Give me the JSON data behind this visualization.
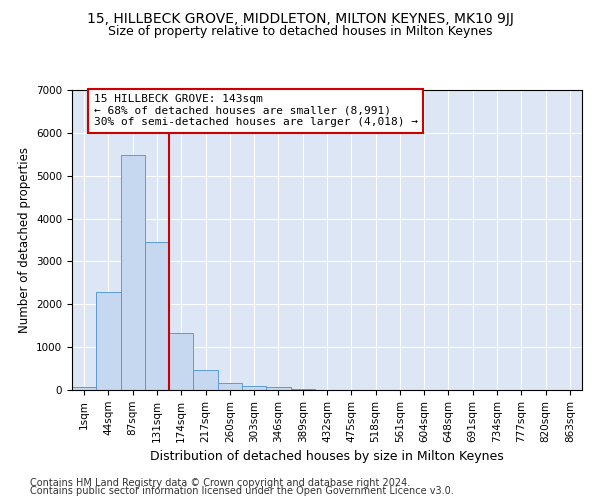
{
  "title1": "15, HILLBECK GROVE, MIDDLETON, MILTON KEYNES, MK10 9JJ",
  "title2": "Size of property relative to detached houses in Milton Keynes",
  "xlabel": "Distribution of detached houses by size in Milton Keynes",
  "ylabel": "Number of detached properties",
  "footer1": "Contains HM Land Registry data © Crown copyright and database right 2024.",
  "footer2": "Contains public sector information licensed under the Open Government Licence v3.0.",
  "bar_labels": [
    "1sqm",
    "44sqm",
    "87sqm",
    "131sqm",
    "174sqm",
    "217sqm",
    "260sqm",
    "303sqm",
    "346sqm",
    "389sqm",
    "432sqm",
    "475sqm",
    "518sqm",
    "561sqm",
    "604sqm",
    "648sqm",
    "691sqm",
    "734sqm",
    "777sqm",
    "820sqm",
    "863sqm"
  ],
  "bar_values": [
    80,
    2280,
    5490,
    3450,
    1320,
    470,
    160,
    85,
    60,
    35,
    0,
    0,
    0,
    0,
    0,
    0,
    0,
    0,
    0,
    0,
    0
  ],
  "bar_color": "#c5d8f0",
  "bar_edge_color": "#5b9bd5",
  "ylim": [
    0,
    7000
  ],
  "yticks": [
    0,
    1000,
    2000,
    3000,
    4000,
    5000,
    6000,
    7000
  ],
  "vline_x": 3.5,
  "vline_color": "#cc0000",
  "annotation_box_text": "15 HILLBECK GROVE: 143sqm\n← 68% of detached houses are smaller (8,991)\n30% of semi-detached houses are larger (4,018) →",
  "bg_color": "#dce6f5",
  "grid_color": "#ffffff",
  "title1_fontsize": 10,
  "title2_fontsize": 9,
  "xlabel_fontsize": 9,
  "ylabel_fontsize": 8.5,
  "tick_fontsize": 7.5,
  "annotation_fontsize": 8
}
